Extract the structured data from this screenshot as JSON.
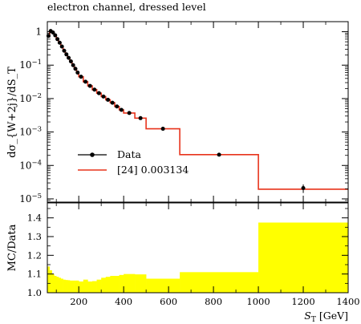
{
  "chart_data": [
    {
      "type": "line",
      "title": "electron channel, dressed level",
      "ylabel": "dσ_{W+2j}/dS_T",
      "y_scale": "log",
      "ylim": [
        8e-06,
        2.0
      ],
      "xlim": [
        60,
        1400
      ],
      "x_tick_labels": [],
      "y_ticks": [
        {
          "value": 1e-05,
          "base": "10",
          "exp": "−5"
        },
        {
          "value": 0.0001,
          "base": "10",
          "exp": "−4"
        },
        {
          "value": 0.001,
          "base": "10",
          "exp": "−3"
        },
        {
          "value": 0.01,
          "base": "10",
          "exp": "−2"
        },
        {
          "value": 0.1,
          "base": "10",
          "exp": "−1"
        },
        {
          "value": 1,
          "base": "1",
          "exp": ""
        }
      ],
      "legend": {
        "placement": "lower-left",
        "entries": [
          {
            "label": "Data",
            "marker": "dot",
            "color": "#000000"
          },
          {
            "label": "[24] 0.003134",
            "marker": "line",
            "color": "#e8341c"
          }
        ]
      },
      "series": [
        {
          "name": "Data",
          "type": "scatter",
          "color": "#000000",
          "x": [
            65,
            75,
            85,
            95,
            105,
            115,
            125,
            135,
            145,
            155,
            165,
            175,
            185,
            195,
            210,
            230,
            250,
            270,
            290,
            310,
            330,
            350,
            370,
            390,
            425,
            475,
            575,
            825,
            1200
          ],
          "y": [
            0.75,
            1.05,
            0.95,
            0.78,
            0.6,
            0.47,
            0.36,
            0.27,
            0.21,
            0.165,
            0.13,
            0.1,
            0.078,
            0.06,
            0.045,
            0.032,
            0.024,
            0.0185,
            0.0145,
            0.0115,
            0.0092,
            0.0075,
            0.0058,
            0.0046,
            0.0037,
            0.0026,
            0.00125,
            0.00021,
            2.1e-05
          ],
          "yerr": [
            0,
            0,
            0,
            0,
            0,
            0,
            0,
            0,
            0,
            0,
            0,
            0,
            0,
            0,
            0,
            0,
            0,
            0,
            0,
            0,
            0,
            0,
            0,
            0,
            0,
            0,
            0,
            1e-05,
            6e-06
          ]
        },
        {
          "name": "[24] 0.003134",
          "type": "histogram",
          "color": "#e8341c",
          "bin_edges": [
            60,
            70,
            80,
            90,
            100,
            110,
            120,
            130,
            140,
            150,
            160,
            170,
            180,
            190,
            200,
            220,
            240,
            260,
            280,
            300,
            320,
            340,
            360,
            380,
            400,
            450,
            500,
            650,
            1000,
            1400
          ],
          "values": [
            0.75,
            1.05,
            0.95,
            0.78,
            0.6,
            0.47,
            0.36,
            0.27,
            0.21,
            0.165,
            0.13,
            0.1,
            0.078,
            0.06,
            0.045,
            0.032,
            0.024,
            0.0185,
            0.0145,
            0.0115,
            0.0092,
            0.0075,
            0.0058,
            0.0046,
            0.0037,
            0.0026,
            0.00125,
            0.00021,
            1.95e-05
          ]
        }
      ]
    },
    {
      "type": "area",
      "ylabel": "MC/Data",
      "xlabel_base": "S",
      "xlabel_sub": "T",
      "xlabel_unit": "[GeV]",
      "xlim": [
        60,
        1400
      ],
      "ylim": [
        1.0,
        1.48
      ],
      "x_ticks": [
        200,
        400,
        600,
        800,
        1000,
        1200,
        1400
      ],
      "y_ticks": [
        1.0,
        1.1,
        1.2,
        1.3,
        1.4
      ],
      "y_tick_labels": [
        "1.0",
        "1.1",
        "1.2",
        "1.3",
        "1.4"
      ],
      "band_color": "#ffff00",
      "series": [
        {
          "name": "",
          "type": "band",
          "bin_edges": [
            60,
            70,
            80,
            90,
            100,
            110,
            120,
            130,
            140,
            150,
            160,
            170,
            180,
            190,
            200,
            220,
            240,
            260,
            280,
            300,
            320,
            340,
            360,
            380,
            400,
            450,
            500,
            650,
            1000,
            1400
          ],
          "values": [
            1.14,
            1.12,
            1.1,
            1.09,
            1.085,
            1.08,
            1.075,
            1.07,
            1.068,
            1.067,
            1.065,
            1.065,
            1.065,
            1.065,
            1.06,
            1.07,
            1.06,
            1.062,
            1.07,
            1.08,
            1.085,
            1.09,
            1.09,
            1.095,
            1.1,
            1.098,
            1.075,
            1.11,
            1.375
          ]
        }
      ]
    }
  ]
}
